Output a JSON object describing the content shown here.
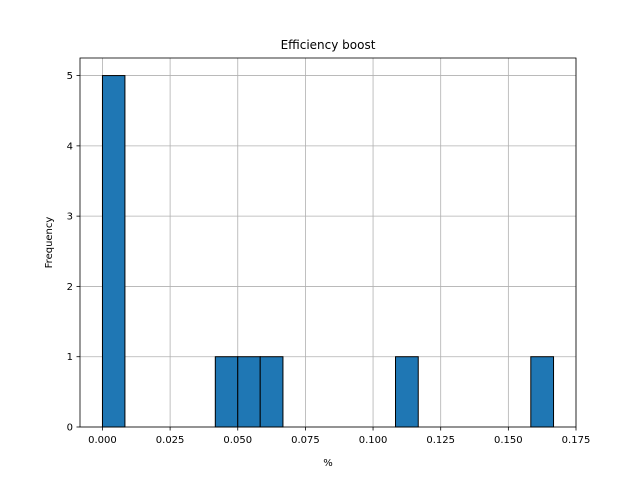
{
  "chart_data": {
    "type": "bar",
    "title": "Efficiency boost",
    "xlabel": "%",
    "ylabel": "Frequency",
    "xlim": [
      -0.0083,
      0.175
    ],
    "ylim": [
      0,
      5.25
    ],
    "xticks": [
      0.0,
      0.025,
      0.05,
      0.075,
      0.1,
      0.125,
      0.15,
      0.175
    ],
    "xtick_labels": [
      "0.000",
      "0.025",
      "0.050",
      "0.075",
      "0.100",
      "0.125",
      "0.150",
      "0.175"
    ],
    "yticks": [
      0,
      1,
      2,
      3,
      4,
      5
    ],
    "ytick_labels": [
      "0",
      "1",
      "2",
      "3",
      "4",
      "5"
    ],
    "grid": true,
    "bar_color": "#1f77b4",
    "edge_color": "#000000",
    "bins": [
      {
        "x0": 0.0,
        "x1": 0.0083,
        "count": 5
      },
      {
        "x0": 0.0417,
        "x1": 0.05,
        "count": 1
      },
      {
        "x0": 0.05,
        "x1": 0.0583,
        "count": 1
      },
      {
        "x0": 0.0583,
        "x1": 0.0667,
        "count": 1
      },
      {
        "x0": 0.1083,
        "x1": 0.1167,
        "count": 1
      },
      {
        "x0": 0.1583,
        "x1": 0.1667,
        "count": 1
      }
    ]
  }
}
